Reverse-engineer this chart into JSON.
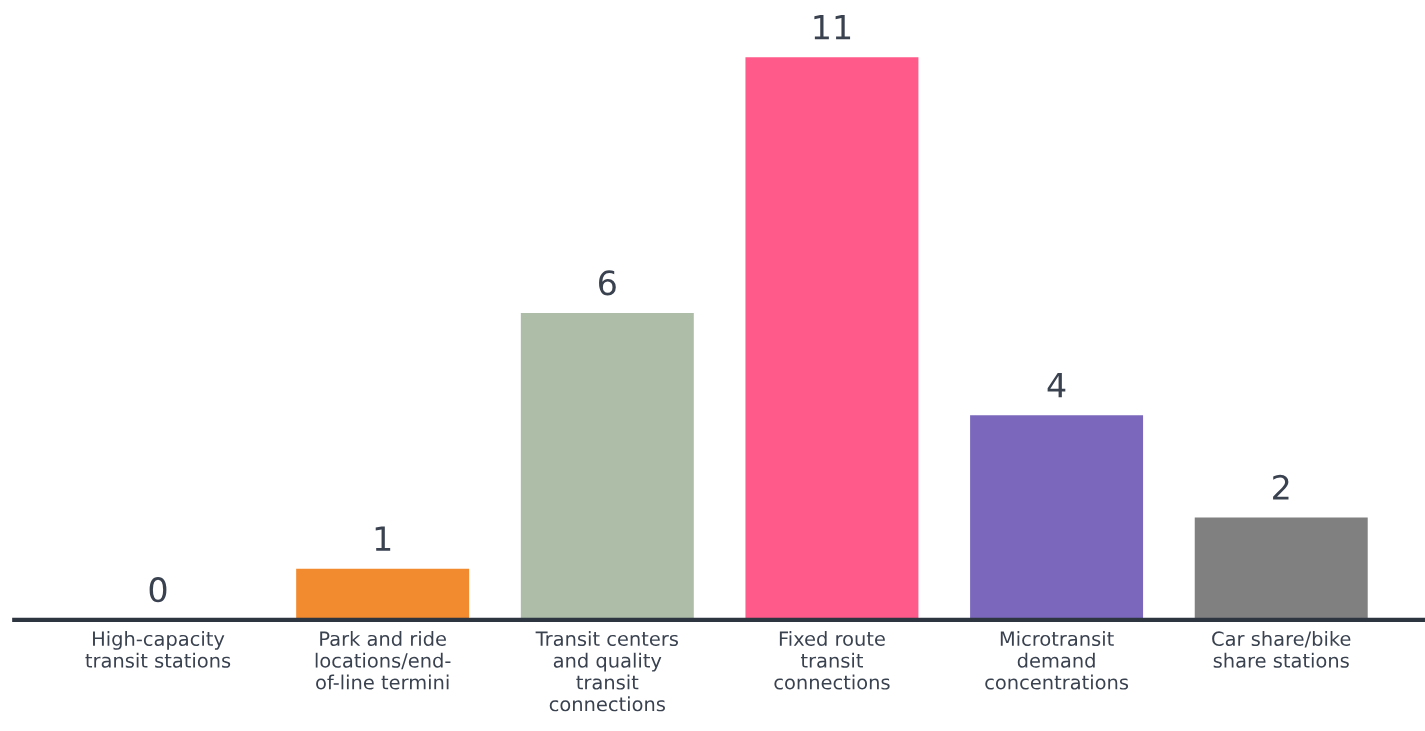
{
  "chart_data": {
    "type": "bar",
    "categories": [
      "High-capacity\ntransit stations",
      "Park and ride\nlocations/end-\nof-line termini",
      "Transit centers\nand quality\ntransit\nconnections",
      "Fixed route\ntransit\nconnections",
      "Microtransit\ndemand\nconcentrations",
      "Car share/bike\nshare stations"
    ],
    "values": [
      0,
      1,
      6,
      11,
      4,
      2
    ],
    "colors": [
      "#5b7fb5",
      "#f28a30",
      "#adbda8",
      "#ff5a8a",
      "#7b68bd",
      "#808080"
    ],
    "data_labels": true,
    "tick_labels": "x",
    "grid": false,
    "legend": false
  }
}
